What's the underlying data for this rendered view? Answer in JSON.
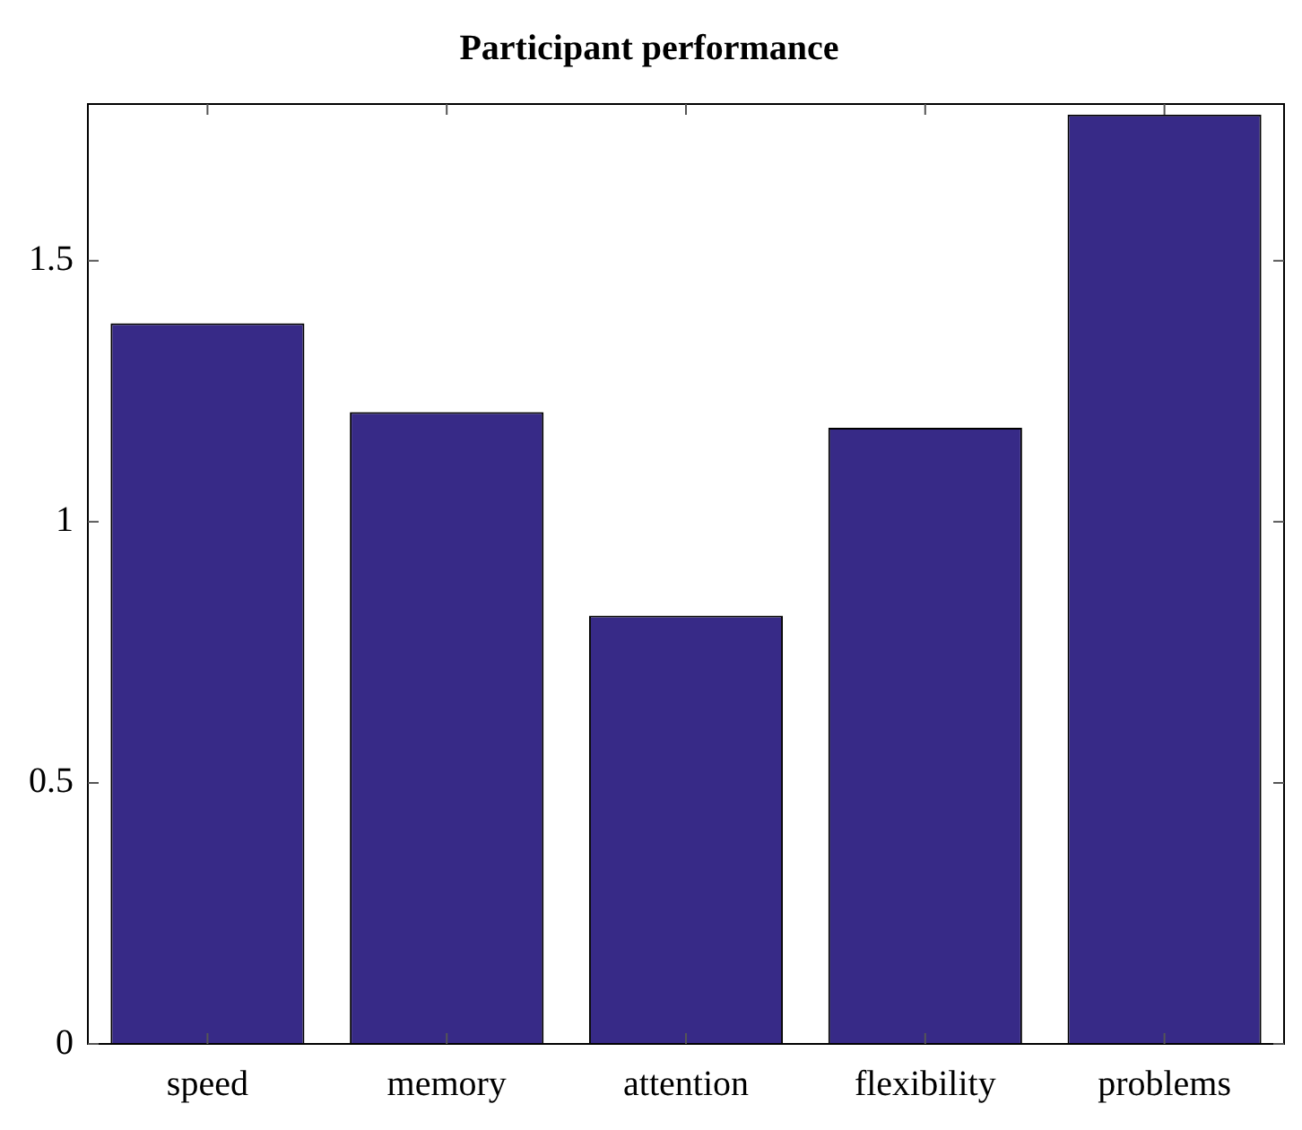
{
  "chart_data": {
    "type": "bar",
    "title": "Participant performance",
    "categories": [
      "speed",
      "memory",
      "attention",
      "flexibility",
      "problems"
    ],
    "values": [
      1.38,
      1.21,
      0.82,
      1.18,
      1.78
    ],
    "color": "#372a87",
    "ylim": [
      0,
      1.8
    ],
    "yticks": [
      0,
      {
        "value": 0.5,
        "label": "0.5"
      },
      1,
      {
        "value": 1.5,
        "label": "1.5"
      }
    ],
    "grid": false,
    "legend": false
  }
}
